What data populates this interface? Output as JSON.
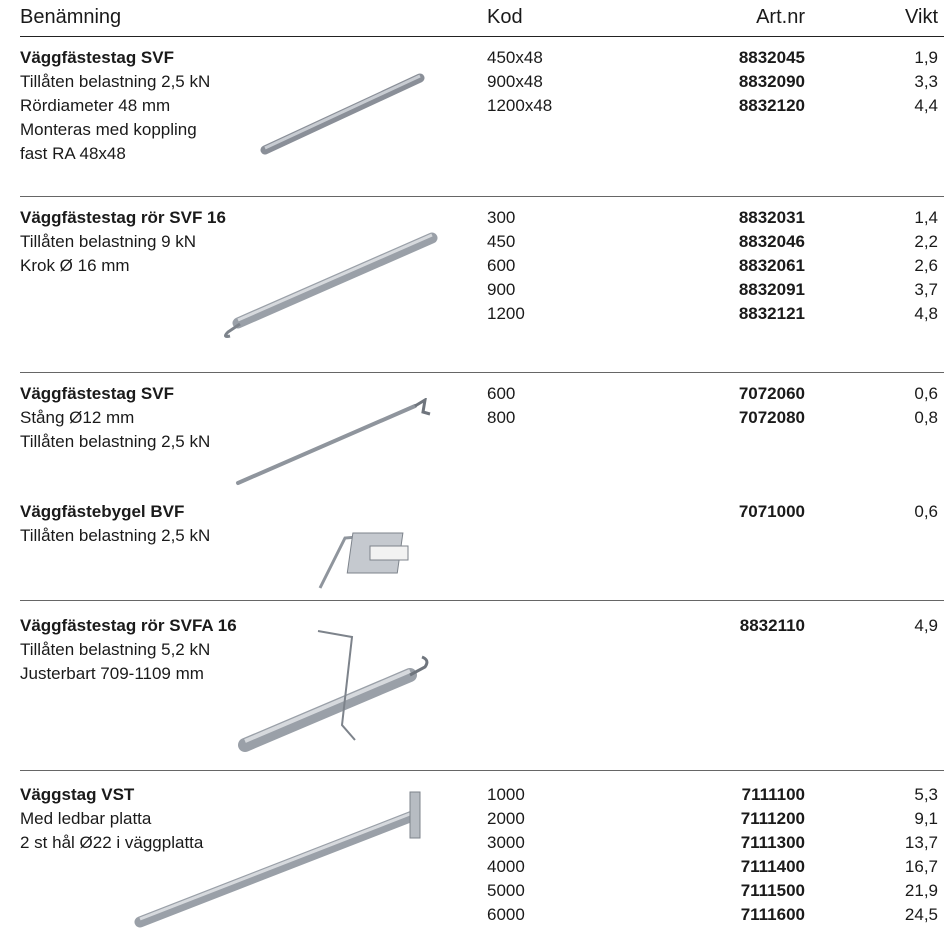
{
  "header": {
    "columns": [
      "Benämning",
      "Kod",
      "Art.nr",
      "Vikt"
    ]
  },
  "products": [
    {
      "name": "Väggfästestag SVF",
      "description": [
        "Tillåten belastning 2,5 kN",
        "Rördiameter 48 mm",
        "Monteras med koppling",
        "fast RA 48x48"
      ],
      "rows": [
        {
          "kod": "450x48",
          "art_nr": "8832045",
          "vikt": "1,9"
        },
        {
          "kod": "900x48",
          "art_nr": "8832090",
          "vikt": "3,3"
        },
        {
          "kod": "1200x48",
          "art_nr": "8832120",
          "vikt": "4,4"
        }
      ]
    },
    {
      "name": "Väggfästestag rör SVF 16",
      "description": [
        "Tillåten belastning 9 kN",
        "Krok Ø 16 mm"
      ],
      "rows": [
        {
          "kod": "300",
          "art_nr": "8832031",
          "vikt": "1,4"
        },
        {
          "kod": "450",
          "art_nr": "8832046",
          "vikt": "2,2"
        },
        {
          "kod": "600",
          "art_nr": "8832061",
          "vikt": "2,6"
        },
        {
          "kod": "900",
          "art_nr": "8832091",
          "vikt": "3,7"
        },
        {
          "kod": "1200",
          "art_nr": "8832121",
          "vikt": "4,8"
        }
      ]
    },
    {
      "name": "Väggfästestag SVF",
      "description": [
        "Stång Ø12 mm",
        "Tillåten belastning 2,5 kN"
      ],
      "rows": [
        {
          "kod": "600",
          "art_nr": "7072060",
          "vikt": "0,6"
        },
        {
          "kod": "800",
          "art_nr": "7072080",
          "vikt": "0,8"
        }
      ]
    },
    {
      "name": "Väggfästebygel BVF",
      "description": [
        "Tillåten belastning 2,5 kN"
      ],
      "rows": [
        {
          "art_nr": "7071000",
          "vikt": "0,6"
        }
      ]
    },
    {
      "name": "Väggfästestag rör SVFA 16",
      "description": [
        "Tillåten belastning 5,2 kN",
        "Justerbart 709-1109 mm"
      ],
      "rows": [
        {
          "art_nr": "8832110",
          "vikt": "4,9"
        }
      ]
    },
    {
      "name": "Väggstag VST",
      "description": [
        "Med ledbar platta",
        "2 st hål Ø22 i väggplatta"
      ],
      "rows": [
        {
          "kod": "1000",
          "art_nr": "7111100",
          "vikt": "5,3"
        },
        {
          "kod": "2000",
          "art_nr": "7111200",
          "vikt": "9,1"
        },
        {
          "kod": "3000",
          "art_nr": "7111300",
          "vikt": "13,7"
        },
        {
          "kod": "4000",
          "art_nr": "7111400",
          "vikt": "16,7"
        },
        {
          "kod": "5000",
          "art_nr": "7111500",
          "vikt": "21,9"
        },
        {
          "kod": "6000",
          "art_nr": "7111600",
          "vikt": "24,5"
        }
      ]
    }
  ]
}
